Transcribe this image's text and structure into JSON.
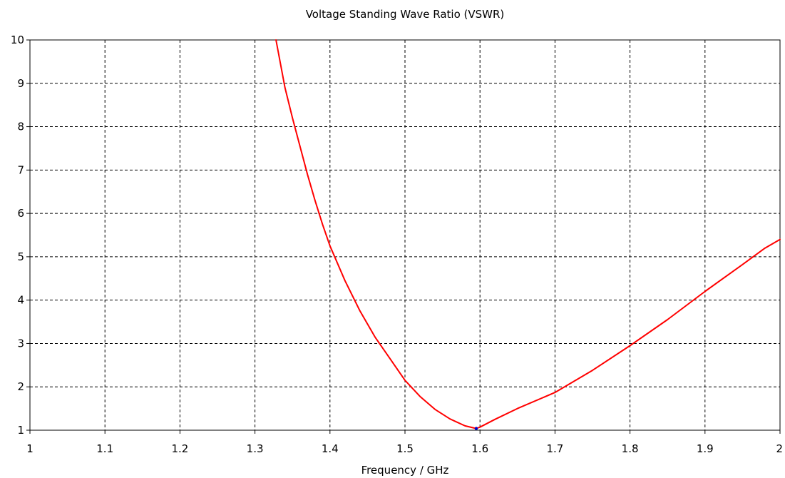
{
  "chart_data": {
    "type": "line",
    "title": "Voltage Standing Wave Ratio (VSWR)",
    "xlabel": "Frequency / GHz",
    "ylabel": "",
    "xlim": [
      1,
      2
    ],
    "ylim": [
      1,
      10
    ],
    "xticks": [
      1,
      1.1,
      1.2,
      1.3,
      1.4,
      1.5,
      1.6,
      1.7,
      1.8,
      1.9,
      2
    ],
    "xtick_labels": [
      "1",
      "1.1",
      "1.2",
      "1.3",
      "1.4",
      "1.5",
      "1.6",
      "1.7",
      "1.8",
      "1.9",
      "2"
    ],
    "yticks": [
      1,
      2,
      3,
      4,
      5,
      6,
      7,
      8,
      9,
      10
    ],
    "ytick_labels": [
      "1",
      "2",
      "3",
      "4",
      "5",
      "6",
      "7",
      "8",
      "9",
      "10"
    ],
    "grid": true,
    "grid_style": "dashed",
    "legend": "none",
    "series": [
      {
        "color": "#ff0000",
        "x": [
          1.328,
          1.34,
          1.35,
          1.36,
          1.37,
          1.38,
          1.39,
          1.4,
          1.42,
          1.44,
          1.46,
          1.48,
          1.5,
          1.52,
          1.54,
          1.56,
          1.58,
          1.595,
          1.6,
          1.62,
          1.65,
          1.7,
          1.75,
          1.8,
          1.85,
          1.9,
          1.95,
          1.98,
          2.0
        ],
        "y": [
          10.0,
          8.9,
          8.2,
          7.55,
          6.9,
          6.3,
          5.75,
          5.25,
          4.45,
          3.75,
          3.15,
          2.65,
          2.15,
          1.78,
          1.48,
          1.26,
          1.1,
          1.04,
          1.07,
          1.25,
          1.5,
          1.87,
          2.38,
          2.95,
          3.55,
          4.2,
          4.82,
          5.2,
          5.4
        ]
      }
    ],
    "marker": {
      "x": 1.595,
      "y": 1.04,
      "color": "#0000cc"
    }
  }
}
